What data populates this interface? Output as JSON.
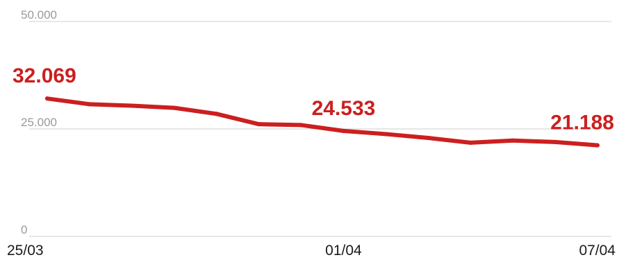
{
  "chart_data": {
    "type": "line",
    "title": "",
    "xlabel": "",
    "ylabel": "",
    "ylim": [
      0,
      50000
    ],
    "y_ticks": [
      "50.000",
      "25.000",
      "0"
    ],
    "x_tick_labels": [
      "25/03",
      "01/04",
      "07/04"
    ],
    "grid": true,
    "color": "#cc1f1f",
    "series": [
      {
        "x": [
          "25/03",
          "26/03",
          "27/03",
          "28/03",
          "29/03",
          "30/03",
          "31/03",
          "01/04",
          "02/04",
          "03/04",
          "04/04",
          "05/04",
          "06/04",
          "07/04"
        ],
        "values": [
          32069,
          30750,
          30400,
          29900,
          28500,
          26100,
          25900,
          24533,
          23800,
          22900,
          21800,
          22300,
          21950,
          21188
        ]
      }
    ],
    "data_labels": [
      {
        "index": 0,
        "text": "32.069"
      },
      {
        "index": 7,
        "text": "24.533"
      },
      {
        "index": 13,
        "text": "21.188"
      }
    ]
  }
}
